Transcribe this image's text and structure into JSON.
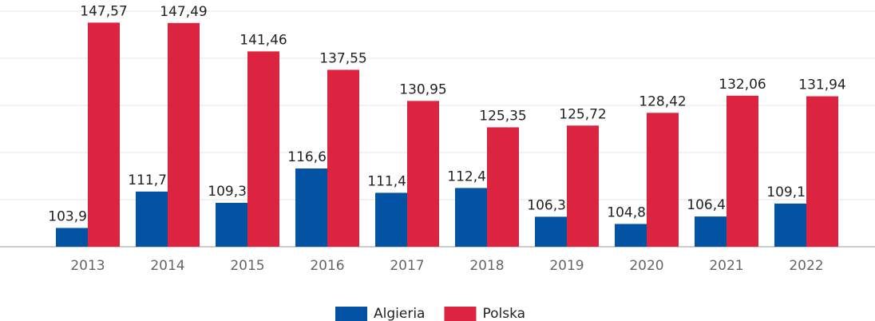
{
  "chart_data": {
    "type": "bar",
    "categories": [
      "2013",
      "2014",
      "2015",
      "2016",
      "2017",
      "2018",
      "2019",
      "2020",
      "2021",
      "2022"
    ],
    "series": [
      {
        "name": "Algieria",
        "color": "#0353a4",
        "values": [
          103.99,
          111.71,
          109.32,
          116.61,
          111.45,
          112.47,
          106.37,
          104.84,
          106.42,
          109.17
        ],
        "value_labels": [
          "103,99",
          "111,71",
          "109,32",
          "116,61",
          "111,45",
          "112,47",
          "106,37",
          "104,84",
          "106,42",
          "109,17"
        ]
      },
      {
        "name": "Polska",
        "color": "#dc2340",
        "values": [
          147.57,
          147.49,
          141.46,
          137.55,
          130.95,
          125.35,
          125.72,
          128.42,
          132.06,
          131.94
        ],
        "value_labels": [
          "147,57",
          "147,49",
          "141,46",
          "137,55",
          "130,95",
          "125,35",
          "125,72",
          "128,42",
          "132,06",
          "131,94"
        ]
      }
    ],
    "ylim": [
      100,
      150
    ],
    "yticks": [
      100,
      110,
      120,
      130,
      140,
      150
    ],
    "grid": true,
    "legend": "bottom"
  }
}
